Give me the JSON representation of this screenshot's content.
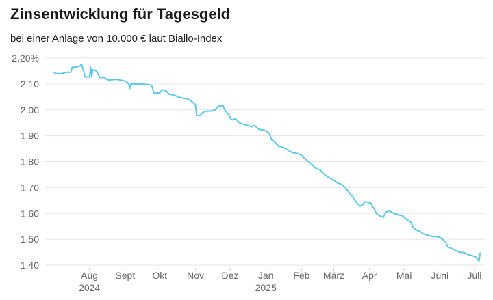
{
  "chart_data": {
    "type": "line",
    "title": "Zinsentwicklung für Tagesgeld",
    "subtitle": "bei einer Anlage von 10.000 € laut Biallo-Index",
    "xlabel": "",
    "ylabel": "",
    "ylim": [
      1.38,
      2.21
    ],
    "yticks": [
      "2,20%",
      "2,10",
      "2,00",
      "1,90",
      "1,80",
      "1,70",
      "1,60",
      "1,50",
      "1,40"
    ],
    "ytick_values": [
      2.2,
      2.1,
      2.0,
      1.9,
      1.8,
      1.7,
      1.6,
      1.5,
      1.4
    ],
    "xticks": [
      {
        "month": "Aug",
        "year": "2024",
        "date": "2024-08-01"
      },
      {
        "month": "Sept",
        "year": "",
        "date": "2024-09-01"
      },
      {
        "month": "Okt",
        "year": "",
        "date": "2024-10-01"
      },
      {
        "month": "Nov",
        "year": "",
        "date": "2024-11-01"
      },
      {
        "month": "Dez",
        "year": "",
        "date": "2024-12-01"
      },
      {
        "month": "Jan",
        "year": "2025",
        "date": "2025-01-01"
      },
      {
        "month": "Feb",
        "year": "",
        "date": "2025-02-01"
      },
      {
        "month": "März",
        "year": "",
        "date": "2025-03-01"
      },
      {
        "month": "Apr",
        "year": "",
        "date": "2025-04-01"
      },
      {
        "month": "Mai",
        "year": "",
        "date": "2025-05-01"
      },
      {
        "month": "Juni",
        "year": "",
        "date": "2025-06-01"
      },
      {
        "month": "Juli",
        "year": "",
        "date": "2025-07-01"
      }
    ],
    "grid": true,
    "line_color": "#5bc8ea",
    "series": [
      {
        "name": "",
        "points": [
          [
            "2024-07-01",
            2.145
          ],
          [
            "2024-07-03",
            2.14
          ],
          [
            "2024-07-08",
            2.14
          ],
          [
            "2024-07-12",
            2.145
          ],
          [
            "2024-07-16",
            2.145
          ],
          [
            "2024-07-17",
            2.165
          ],
          [
            "2024-07-20",
            2.165
          ],
          [
            "2024-07-24",
            2.17
          ],
          [
            "2024-07-25",
            2.178
          ],
          [
            "2024-07-27",
            2.15
          ],
          [
            "2024-07-28",
            2.127
          ],
          [
            "2024-08-01",
            2.127
          ],
          [
            "2024-08-02",
            2.165
          ],
          [
            "2024-08-03",
            2.127
          ],
          [
            "2024-08-04",
            2.155
          ],
          [
            "2024-08-07",
            2.15
          ],
          [
            "2024-08-10",
            2.125
          ],
          [
            "2024-08-14",
            2.125
          ],
          [
            "2024-08-17",
            2.115
          ],
          [
            "2024-08-24",
            2.118
          ],
          [
            "2024-08-28",
            2.115
          ],
          [
            "2024-09-02",
            2.11
          ],
          [
            "2024-09-04",
            2.1
          ],
          [
            "2024-09-05",
            2.083
          ],
          [
            "2024-09-06",
            2.1
          ],
          [
            "2024-09-15",
            2.1
          ],
          [
            "2024-09-20",
            2.098
          ],
          [
            "2024-09-24",
            2.095
          ],
          [
            "2024-09-26",
            2.065
          ],
          [
            "2024-10-01",
            2.065
          ],
          [
            "2024-10-03",
            2.078
          ],
          [
            "2024-10-07",
            2.072
          ],
          [
            "2024-10-09",
            2.06
          ],
          [
            "2024-10-13",
            2.058
          ],
          [
            "2024-10-17",
            2.05
          ],
          [
            "2024-10-21",
            2.045
          ],
          [
            "2024-10-25",
            2.043
          ],
          [
            "2024-10-28",
            2.035
          ],
          [
            "2024-11-01",
            2.02
          ],
          [
            "2024-11-02",
            1.978
          ],
          [
            "2024-11-05",
            1.978
          ],
          [
            "2024-11-07",
            1.988
          ],
          [
            "2024-11-10",
            1.995
          ],
          [
            "2024-11-14",
            1.995
          ],
          [
            "2024-11-18",
            2.0
          ],
          [
            "2024-11-21",
            2.015
          ],
          [
            "2024-11-25",
            2.015
          ],
          [
            "2024-11-27",
            1.995
          ],
          [
            "2024-11-30",
            1.98
          ],
          [
            "2024-12-02",
            1.962
          ],
          [
            "2024-12-06",
            1.965
          ],
          [
            "2024-12-09",
            1.95
          ],
          [
            "2024-12-12",
            1.945
          ],
          [
            "2024-12-16",
            1.94
          ],
          [
            "2024-12-20",
            1.935
          ],
          [
            "2024-12-22",
            1.94
          ],
          [
            "2024-12-26",
            1.925
          ],
          [
            "2025-01-01",
            1.92
          ],
          [
            "2025-01-04",
            1.91
          ],
          [
            "2025-01-06",
            1.885
          ],
          [
            "2025-01-09",
            1.875
          ],
          [
            "2025-01-12",
            1.86
          ],
          [
            "2025-01-16",
            1.855
          ],
          [
            "2025-01-20",
            1.845
          ],
          [
            "2025-01-24",
            1.835
          ],
          [
            "2025-01-28",
            1.832
          ],
          [
            "2025-02-01",
            1.825
          ],
          [
            "2025-02-03",
            1.815
          ],
          [
            "2025-02-07",
            1.8
          ],
          [
            "2025-02-10",
            1.79
          ],
          [
            "2025-02-13",
            1.775
          ],
          [
            "2025-02-17",
            1.768
          ],
          [
            "2025-02-21",
            1.75
          ],
          [
            "2025-02-25",
            1.738
          ],
          [
            "2025-03-01",
            1.728
          ],
          [
            "2025-03-04",
            1.718
          ],
          [
            "2025-03-08",
            1.712
          ],
          [
            "2025-03-12",
            1.695
          ],
          [
            "2025-03-15",
            1.675
          ],
          [
            "2025-03-18",
            1.66
          ],
          [
            "2025-03-21",
            1.64
          ],
          [
            "2025-03-24",
            1.628
          ],
          [
            "2025-03-26",
            1.633
          ],
          [
            "2025-03-28",
            1.645
          ],
          [
            "2025-04-02",
            1.64
          ],
          [
            "2025-04-05",
            1.617
          ],
          [
            "2025-04-07",
            1.6
          ],
          [
            "2025-04-10",
            1.59
          ],
          [
            "2025-04-13",
            1.585
          ],
          [
            "2025-04-15",
            1.605
          ],
          [
            "2025-04-18",
            1.61
          ],
          [
            "2025-04-22",
            1.6
          ],
          [
            "2025-04-26",
            1.595
          ],
          [
            "2025-04-30",
            1.59
          ],
          [
            "2025-05-02",
            1.58
          ],
          [
            "2025-05-04",
            1.575
          ],
          [
            "2025-05-07",
            1.565
          ],
          [
            "2025-05-09",
            1.545
          ],
          [
            "2025-05-12",
            1.535
          ],
          [
            "2025-05-15",
            1.53
          ],
          [
            "2025-05-18",
            1.52
          ],
          [
            "2025-05-22",
            1.515
          ],
          [
            "2025-05-26",
            1.51
          ],
          [
            "2025-05-30",
            1.51
          ],
          [
            "2025-06-02",
            1.505
          ],
          [
            "2025-06-06",
            1.49
          ],
          [
            "2025-06-08",
            1.47
          ],
          [
            "2025-06-11",
            1.465
          ],
          [
            "2025-06-14",
            1.458
          ],
          [
            "2025-06-18",
            1.45
          ],
          [
            "2025-06-22",
            1.448
          ],
          [
            "2025-06-26",
            1.44
          ],
          [
            "2025-06-30",
            1.435
          ],
          [
            "2025-07-03",
            1.43
          ],
          [
            "2025-07-05",
            1.415
          ],
          [
            "2025-07-06",
            1.448
          ]
        ]
      }
    ]
  }
}
